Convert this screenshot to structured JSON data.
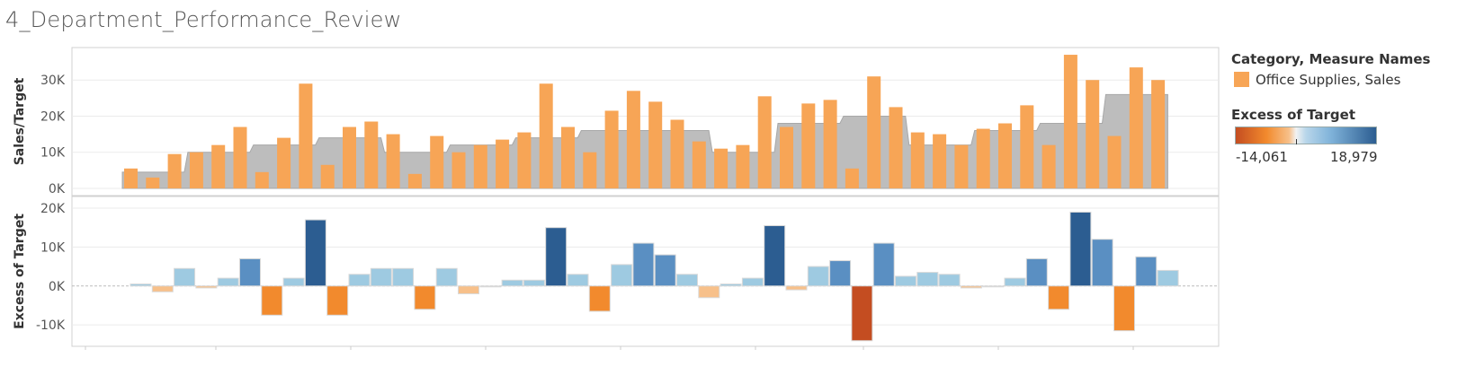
{
  "title": "4_Department_Performance_Review",
  "colors": {
    "sales_bar": "#f7a556",
    "target_area": "#bdbdbd",
    "target_line": "#a8a8a8",
    "neg_strong": "#c44d21",
    "neg_mid": "#f28a2d",
    "neg_light": "#f7c08a",
    "pos_light": "#9ecae1",
    "pos_mid": "#5a8fc2",
    "pos_strong": "#2c5d91",
    "grid": "#ebebeb",
    "zero_line": "#bbbbbb"
  },
  "legend": {
    "category_title": "Category, Measure Names",
    "category_item": "Office Supplies, Sales",
    "excess_title": "Excess of Target",
    "excess_min": "-14,061",
    "excess_max": "18,979"
  },
  "chart_data": [
    {
      "type": "bar",
      "name": "sales-panel",
      "ylabel": "Sales/Target",
      "yticks": [
        "0K",
        "10K",
        "20K",
        "30K"
      ],
      "ylim": [
        -2000,
        39000
      ],
      "grid": true,
      "series": [
        {
          "name": "Office Supplies, Sales",
          "values": [
            5500,
            3000,
            9500,
            10000,
            12000,
            17000,
            4500,
            14000,
            29000,
            6500,
            17000,
            18500,
            15000,
            4000,
            14500,
            10000,
            12000,
            13500,
            15500,
            29000,
            17000,
            10000,
            21500,
            27000,
            24000,
            19000,
            13000,
            11000,
            12000,
            25500,
            17000,
            23500,
            24500,
            5500,
            31000,
            22500,
            15500,
            15000,
            12000,
            16500,
            18000,
            23000,
            12000,
            37000,
            30000,
            14500,
            33500,
            30000
          ]
        },
        {
          "name": "Target",
          "values": [
            4500,
            4500,
            4500,
            10000,
            10000,
            10000,
            12000,
            12000,
            12000,
            14000,
            14000,
            14000,
            10000,
            10000,
            10000,
            12000,
            12000,
            12000,
            14000,
            14000,
            14000,
            16000,
            16000,
            16000,
            16000,
            16000,
            16000,
            10000,
            10000,
            10000,
            18000,
            18000,
            18000,
            20000,
            20000,
            20000,
            12000,
            12000,
            12000,
            16000,
            16000,
            16000,
            18000,
            18000,
            18000,
            26000,
            26000,
            26000
          ]
        }
      ]
    },
    {
      "type": "bar",
      "name": "excess-panel",
      "ylabel": "Excess of Target",
      "yticks": [
        "-10K",
        "0K",
        "10K",
        "20K"
      ],
      "ylim": [
        -15500,
        23000
      ],
      "grid": true,
      "series": [
        {
          "name": "Excess of Target",
          "values": [
            500,
            -1500,
            4500,
            -500,
            2000,
            7000,
            -7500,
            2000,
            17000,
            -7500,
            3000,
            4500,
            4500,
            -6000,
            4500,
            -2000,
            0,
            1500,
            1500,
            15000,
            3000,
            -6500,
            5500,
            11000,
            8000,
            3000,
            -3000,
            500,
            2000,
            15500,
            -1000,
            5000,
            6500,
            -14061,
            11000,
            2500,
            3500,
            3000,
            -500,
            0,
            2000,
            7000,
            -6000,
            18979,
            12000,
            -11500,
            7500,
            4000
          ]
        }
      ]
    }
  ]
}
